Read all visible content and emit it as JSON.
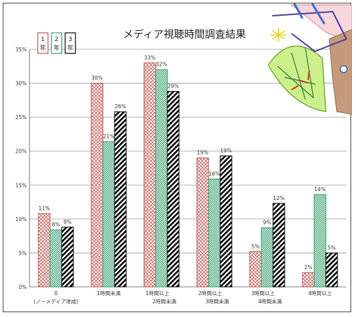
{
  "chart_data": {
    "type": "bar",
    "title": "メディア視聴時間調査結果",
    "categories": [
      [
        "0",
        "(ノーメディア達成)"
      ],
      [
        "1時間未満"
      ],
      [
        "1時間以上",
        "2時間未満"
      ],
      [
        "2時間以上",
        "3時間未満"
      ],
      [
        "3時間以上",
        "4時間未満"
      ],
      [
        "4時間以上"
      ]
    ],
    "series": [
      {
        "name": "1年",
        "legend_chars": [
          "1",
          "年"
        ],
        "color": "#c0504d",
        "pattern": "cross-hatch",
        "values": [
          10.8,
          30,
          33,
          19,
          5.2,
          2.1
        ],
        "labels": [
          "11%",
          "30%",
          "33%",
          "19%",
          "5%",
          "2%"
        ]
      },
      {
        "name": "2年",
        "legend_chars": [
          "2",
          "年"
        ],
        "color": "#2e9a6b",
        "pattern": "check",
        "values": [
          8.4,
          21.4,
          32,
          15.9,
          8.7,
          13.6
        ],
        "labels": [
          "8%",
          "21%",
          "32%",
          "16%",
          "9%",
          "14%"
        ]
      },
      {
        "name": "3年",
        "legend_chars": [
          "3",
          "年"
        ],
        "color": "#000000",
        "pattern": "diagonal",
        "values": [
          8.8,
          25.8,
          28.8,
          19.3,
          12.3,
          5
        ],
        "labels": [
          "9%",
          "26%",
          "29%",
          "19%",
          "12%",
          "5%"
        ]
      }
    ],
    "ylim": [
      0,
      35
    ],
    "yticks": [
      "0%",
      "5%",
      "10%",
      "15%",
      "20%",
      "25%",
      "30%",
      "35%"
    ],
    "grid": true,
    "legend_position": "top-left",
    "decoration": "compass-and-protractor-drawing"
  }
}
